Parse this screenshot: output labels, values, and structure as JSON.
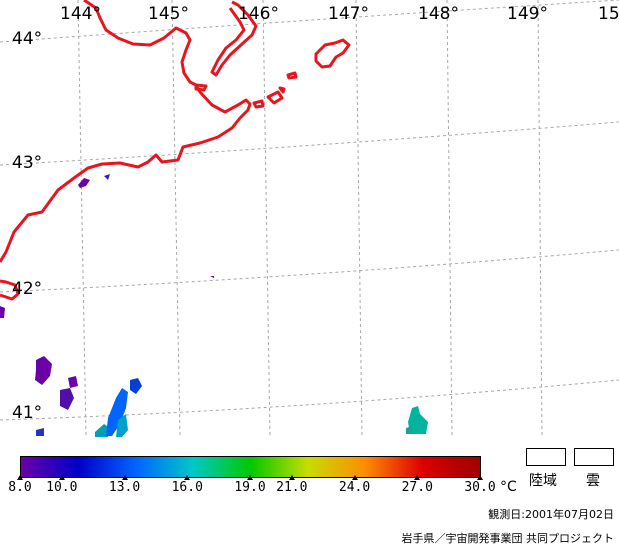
{
  "map": {
    "longitude_labels": [
      "144°",
      "145°",
      "146°",
      "147°",
      "148°",
      "149°",
      "15"
    ],
    "latitude_labels": [
      "44°",
      "43°",
      "42°",
      "41°"
    ],
    "colors": {
      "coastline": "#e8141e",
      "grid": "#a0a0a0",
      "background": "#ffffff"
    }
  },
  "legend": {
    "tick_labels": [
      "8.0",
      "10.0",
      "13.0",
      "16.0",
      "19.0",
      "21.0",
      "24.0",
      "27.0",
      "30.0"
    ],
    "tick_values": [
      8,
      10,
      13,
      16,
      19,
      21,
      24,
      27,
      30
    ],
    "range": [
      8,
      30
    ],
    "unit": "°C",
    "land_label": "陸域",
    "cloud_label": "雲",
    "colormap": [
      "#6a00a8",
      "#0000c8",
      "#0064ff",
      "#00c8c8",
      "#00c800",
      "#c8dc00",
      "#ff8c00",
      "#dc0000",
      "#a00000"
    ]
  },
  "observation_date": "観測日:2001年07月02日",
  "credit": "岩手県／宇宙開発事業団  共同プロジェクト"
}
